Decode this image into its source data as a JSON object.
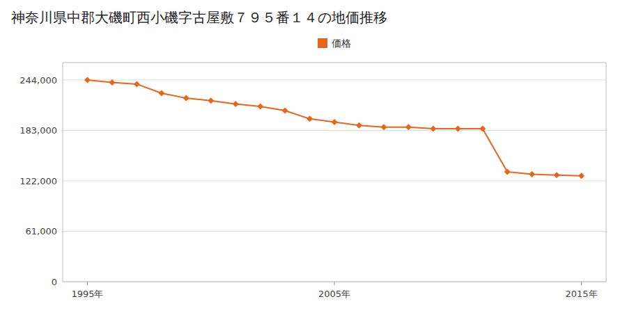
{
  "chart_data": {
    "type": "line",
    "title": "神奈川県中郡大磯町西小磯字古屋敷７９５番１４の地価推移",
    "x": [
      1995,
      1996,
      1997,
      1998,
      1999,
      2000,
      2001,
      2002,
      2003,
      2004,
      2005,
      2006,
      2007,
      2008,
      2009,
      2010,
      2011,
      2012,
      2013,
      2014,
      2015
    ],
    "series": [
      {
        "name": "価格",
        "color": "#e8651a",
        "marker": "diamond",
        "line_style": "solid",
        "values": [
          244000,
          241000,
          239000,
          228000,
          222000,
          219000,
          215000,
          212000,
          207000,
          197000,
          193000,
          189000,
          187000,
          187000,
          185000,
          185000,
          185000,
          133000,
          130000,
          129000,
          128000
        ]
      }
    ],
    "xlim": [
      1994,
      2016
    ],
    "xticks": [
      {
        "value": 1995,
        "label": "1995年"
      },
      {
        "value": 2005,
        "label": "2005年"
      },
      {
        "value": 2015,
        "label": "2015年"
      }
    ],
    "ylim": [
      0,
      265000
    ],
    "yticks": [
      0,
      {
        "value": 61000,
        "label": "61,000"
      },
      {
        "value": 122000,
        "label": "122,000"
      },
      {
        "value": 183000,
        "label": "183,000"
      },
      {
        "value": 244000,
        "label": "244,000"
      }
    ],
    "grid": true,
    "legend": "top"
  }
}
